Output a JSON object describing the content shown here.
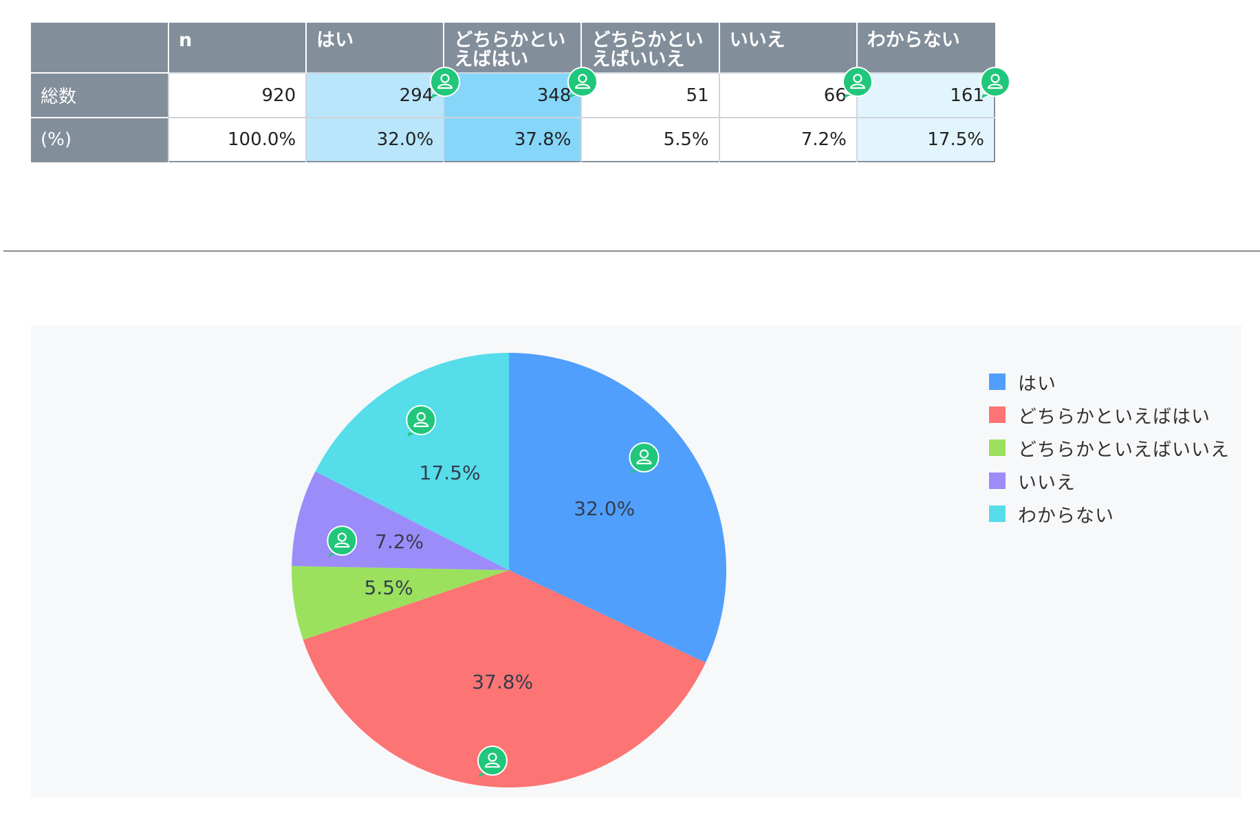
{
  "table": {
    "headers": [
      "",
      "n",
      "はい",
      "どちらかとい\nえばはい",
      "どちらかとい\nえばいいえ",
      "いいえ",
      "わからない"
    ],
    "rows": [
      {
        "label": "総数",
        "cells": [
          "920",
          "294",
          "348",
          "51",
          "66",
          "161"
        ]
      },
      {
        "label": "(%)",
        "cells": [
          "100.0%",
          "32.0%",
          "37.8%",
          "5.5%",
          "7.2%",
          "17.5%"
        ]
      }
    ],
    "shading": [
      "none",
      "light",
      "dark",
      "none",
      "none",
      "pale"
    ]
  },
  "chart_data": {
    "type": "pie",
    "title": "",
    "categories": [
      "はい",
      "どちらかといえばはい",
      "どちらかといえばいいえ",
      "いいえ",
      "わからない"
    ],
    "values": [
      32.0,
      37.8,
      5.5,
      7.2,
      17.5
    ],
    "labels": [
      "32.0%",
      "37.8%",
      "5.5%",
      "7.2%",
      "17.5%"
    ],
    "colors": [
      "#519ffc",
      "#fc7473",
      "#9be15d",
      "#9c8cf9",
      "#55dde9"
    ],
    "legend_position": "top-right",
    "start_angle_deg": 0,
    "direction": "clockwise"
  },
  "badge_color": "#20c77a"
}
